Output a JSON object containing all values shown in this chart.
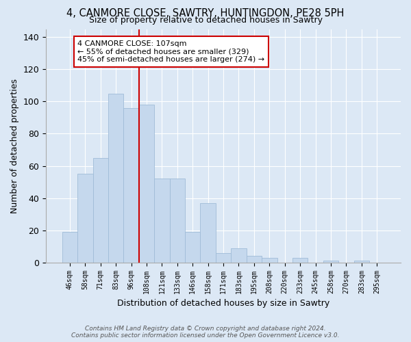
{
  "title": "4, CANMORE CLOSE, SAWTRY, HUNTINGDON, PE28 5PH",
  "subtitle": "Size of property relative to detached houses in Sawtry",
  "xlabel": "Distribution of detached houses by size in Sawtry",
  "ylabel": "Number of detached properties",
  "categories": [
    "46sqm",
    "58sqm",
    "71sqm",
    "83sqm",
    "96sqm",
    "108sqm",
    "121sqm",
    "133sqm",
    "146sqm",
    "158sqm",
    "171sqm",
    "183sqm",
    "195sqm",
    "208sqm",
    "220sqm",
    "233sqm",
    "245sqm",
    "258sqm",
    "270sqm",
    "283sqm",
    "295sqm"
  ],
  "values": [
    19,
    55,
    65,
    105,
    96,
    98,
    52,
    52,
    19,
    37,
    6,
    9,
    4,
    3,
    0,
    3,
    0,
    1,
    0,
    1,
    0
  ],
  "bar_color": "#c5d8ed",
  "bar_edge_color": "#a0bcd8",
  "vline_x": 4.5,
  "vline_color": "#cc0000",
  "annotation_text": "4 CANMORE CLOSE: 107sqm\n← 55% of detached houses are smaller (329)\n45% of semi-detached houses are larger (274) →",
  "annotation_box_color": "#ffffff",
  "annotation_box_edge": "#cc0000",
  "ylim": [
    0,
    145
  ],
  "yticks": [
    0,
    20,
    40,
    60,
    80,
    100,
    120,
    140
  ],
  "footer_text": "Contains HM Land Registry data © Crown copyright and database right 2024.\nContains public sector information licensed under the Open Government Licence v3.0.",
  "bg_color": "#dce8f5",
  "plot_bg_color": "#dce8f5",
  "title_fontsize": 10.5,
  "subtitle_fontsize": 9
}
